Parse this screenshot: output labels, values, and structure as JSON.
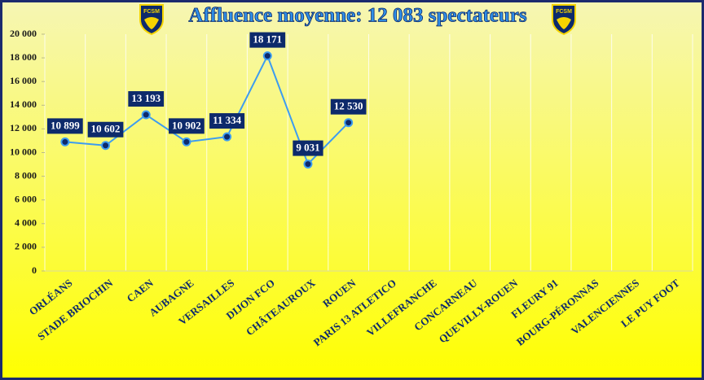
{
  "chart_data": {
    "type": "line",
    "title": "Affluence moyenne: 12 083 spectateurs",
    "logo_text": "FCSM",
    "categories": [
      "ORLÉANS",
      "STADE BRIOCHIN",
      "CAEN",
      "AUBAGNE",
      "VERSAILLES",
      "DIJON FCO",
      "CHÂTEAUROUX",
      "ROUEN",
      "PARIS 13 ATLETICO",
      "VILLEFRANCHE",
      "CONCARNEAU",
      "QUEVILLY-ROUEN",
      "FLEURY 91",
      "BOURG-PÉRONNAS",
      "VALENCIENNES",
      "LE PUY FOOT"
    ],
    "values": [
      10899,
      10602,
      13193,
      10902,
      11334,
      18171,
      9031,
      12530,
      null,
      null,
      null,
      null,
      null,
      null,
      null,
      null
    ],
    "value_labels": [
      "10 899",
      "10 602",
      "13 193",
      "10 902",
      "11 334",
      "18 171",
      "9 031",
      "12 530",
      null,
      null,
      null,
      null,
      null,
      null,
      null,
      null
    ],
    "color": "#3d9cf0",
    "marker_color": "#0d2a6b",
    "ylim": [
      0,
      20000
    ],
    "yticks": [
      0,
      {
        "value": 2000,
        "label": "2 000"
      },
      {
        "value": 4000,
        "label": "4 000"
      },
      {
        "value": 6000,
        "label": "6 000"
      },
      {
        "value": 8000,
        "label": "8 000"
      },
      {
        "value": 10000,
        "label": "10 000"
      },
      {
        "value": 12000,
        "label": "12 000"
      },
      {
        "value": 14000,
        "label": "14 000"
      },
      {
        "value": 16000,
        "label": "16 000"
      },
      {
        "value": 18000,
        "label": "18 000"
      },
      {
        "value": 20000,
        "label": "20 000"
      }
    ],
    "grid": "x"
  }
}
